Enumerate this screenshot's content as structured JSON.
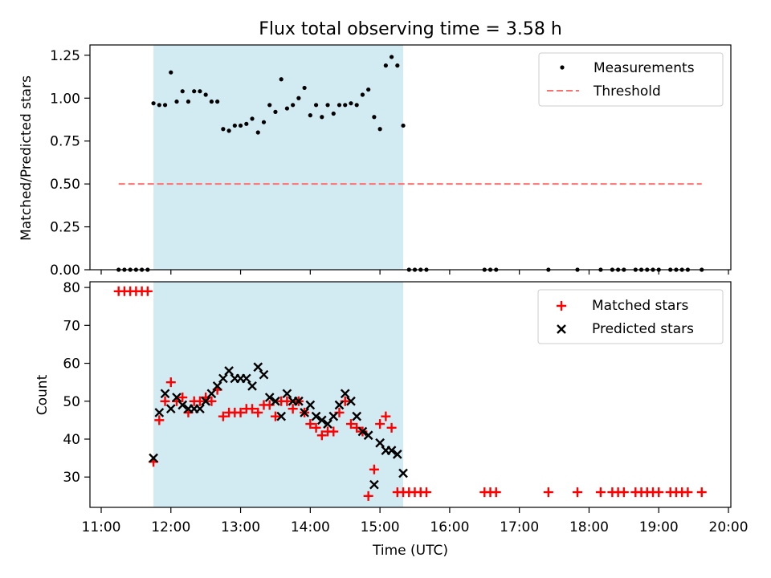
{
  "title": "Flux total observing time = 3.58 h",
  "colors": {
    "shade": "#add8e6",
    "threshold": "#ff6f6f",
    "matched": "#ff0000",
    "predicted": "#000000",
    "measurements": "#000000"
  },
  "chart_data": [
    {
      "type": "scatter",
      "ylabel": "Matched/Predicted stars",
      "ylim": [
        0,
        1.31
      ],
      "yticks": [
        "0.00",
        "0.25",
        "0.50",
        "0.75",
        "1.00",
        "1.25"
      ],
      "shaded_span": [
        "11:45",
        "15:20"
      ],
      "legend": {
        "position": "top-right",
        "measurements_label": "Measurements",
        "threshold_label": "Threshold"
      },
      "threshold": {
        "value": 0.5,
        "x_start": "11:15",
        "x_end": "19:37"
      },
      "measurements": {
        "x": [
          "11:15",
          "11:20",
          "11:25",
          "11:30",
          "11:35",
          "11:40",
          "11:45",
          "11:50",
          "11:55",
          "12:00",
          "12:05",
          "12:10",
          "12:15",
          "12:20",
          "12:25",
          "12:30",
          "12:35",
          "12:40",
          "12:45",
          "12:50",
          "12:55",
          "13:00",
          "13:05",
          "13:10",
          "13:15",
          "13:20",
          "13:25",
          "13:30",
          "13:35",
          "13:40",
          "13:45",
          "13:50",
          "13:55",
          "14:00",
          "14:05",
          "14:10",
          "14:15",
          "14:20",
          "14:25",
          "14:30",
          "14:35",
          "14:40",
          "14:45",
          "14:50",
          "14:55",
          "15:00",
          "15:05",
          "15:10",
          "15:15",
          "15:20",
          "15:25",
          "15:30",
          "15:35",
          "15:40",
          "16:30",
          "16:35",
          "16:40",
          "17:25",
          "17:50",
          "18:10",
          "18:20",
          "18:25",
          "18:30",
          "18:40",
          "18:45",
          "18:50",
          "18:55",
          "19:00",
          "19:10",
          "19:15",
          "19:20",
          "19:25",
          "19:37"
        ],
        "y": [
          0,
          0,
          0,
          0,
          0,
          0,
          0.97,
          0.96,
          0.96,
          1.15,
          0.98,
          1.04,
          0.98,
          1.04,
          1.04,
          1.02,
          0.98,
          0.98,
          0.82,
          0.81,
          0.84,
          0.84,
          0.85,
          0.88,
          0.8,
          0.86,
          0.96,
          0.92,
          1.11,
          0.94,
          0.96,
          1.0,
          1.06,
          0.9,
          0.96,
          0.89,
          0.96,
          0.91,
          0.96,
          0.96,
          0.97,
          0.96,
          1.02,
          1.05,
          0.89,
          0.82,
          1.19,
          1.24,
          1.19,
          0.84,
          0,
          0,
          0,
          0,
          0,
          0,
          0,
          0,
          0,
          0,
          0,
          0,
          0,
          0,
          0,
          0,
          0,
          0,
          0,
          0,
          0,
          0,
          0
        ]
      }
    },
    {
      "type": "scatter",
      "xlabel": "Time (UTC)",
      "ylabel": "Count",
      "ylim": [
        22,
        81.5
      ],
      "yticks": [
        "30",
        "40",
        "50",
        "60",
        "70",
        "80"
      ],
      "xticks": [
        "11:00",
        "12:00",
        "13:00",
        "14:00",
        "15:00",
        "16:00",
        "17:00",
        "18:00",
        "19:00",
        "20:00"
      ],
      "shaded_span": [
        "11:45",
        "15:20"
      ],
      "legend": {
        "position": "top-right",
        "matched_label": "Matched stars",
        "predicted_label": "Predicted stars"
      },
      "matched": {
        "x": [
          "11:15",
          "11:20",
          "11:25",
          "11:30",
          "11:35",
          "11:40",
          "11:45",
          "11:50",
          "11:55",
          "12:00",
          "12:05",
          "12:10",
          "12:15",
          "12:20",
          "12:25",
          "12:30",
          "12:35",
          "12:40",
          "12:45",
          "12:50",
          "12:55",
          "13:00",
          "13:05",
          "13:10",
          "13:15",
          "13:20",
          "13:25",
          "13:30",
          "13:35",
          "13:40",
          "13:45",
          "13:50",
          "13:55",
          "14:00",
          "14:05",
          "14:10",
          "14:15",
          "14:20",
          "14:25",
          "14:30",
          "14:35",
          "14:40",
          "14:45",
          "14:50",
          "14:55",
          "15:00",
          "15:05",
          "15:10",
          "15:15",
          "15:20",
          "15:25",
          "15:30",
          "15:35",
          "15:40",
          "16:30",
          "16:35",
          "16:40",
          "17:25",
          "17:50",
          "18:10",
          "18:20",
          "18:25",
          "18:30",
          "18:40",
          "18:45",
          "18:50",
          "18:55",
          "19:00",
          "19:10",
          "19:15",
          "19:20",
          "19:25",
          "19:37"
        ],
        "y": [
          79,
          79,
          79,
          79,
          79,
          79,
          34,
          45,
          50,
          55,
          50,
          51,
          47,
          50,
          50,
          51,
          50,
          53,
          46,
          47,
          47,
          47,
          48,
          48,
          47,
          49,
          49,
          46,
          50,
          50,
          48,
          50,
          47,
          44,
          43,
          41,
          42,
          42,
          47,
          50,
          44,
          43,
          42,
          25,
          32,
          44,
          46,
          43,
          26,
          26,
          26,
          26,
          26,
          26,
          26,
          26,
          26,
          26,
          26,
          26,
          26,
          26,
          26,
          26,
          26,
          26,
          26,
          26,
          26,
          26,
          26,
          26,
          26
        ]
      },
      "predicted": {
        "x": [
          "11:45",
          "11:50",
          "11:55",
          "12:00",
          "12:05",
          "12:10",
          "12:15",
          "12:20",
          "12:25",
          "12:30",
          "12:35",
          "12:40",
          "12:45",
          "12:50",
          "12:55",
          "13:00",
          "13:05",
          "13:10",
          "13:15",
          "13:20",
          "13:25",
          "13:30",
          "13:35",
          "13:40",
          "13:45",
          "13:50",
          "13:55",
          "14:00",
          "14:05",
          "14:10",
          "14:15",
          "14:20",
          "14:25",
          "14:30",
          "14:35",
          "14:40",
          "14:45",
          "14:50",
          "14:55",
          "15:00",
          "15:05",
          "15:10",
          "15:15",
          "15:20"
        ],
        "y": [
          35,
          47,
          52,
          48,
          51,
          49,
          48,
          48,
          48,
          50,
          52,
          54,
          56,
          58,
          56,
          56,
          56,
          54,
          59,
          57,
          51,
          50,
          46,
          52,
          50,
          50,
          47,
          49,
          46,
          45,
          44,
          46,
          49,
          52,
          50,
          46,
          42,
          41,
          28,
          39,
          37,
          37,
          36,
          31
        ]
      }
    }
  ]
}
